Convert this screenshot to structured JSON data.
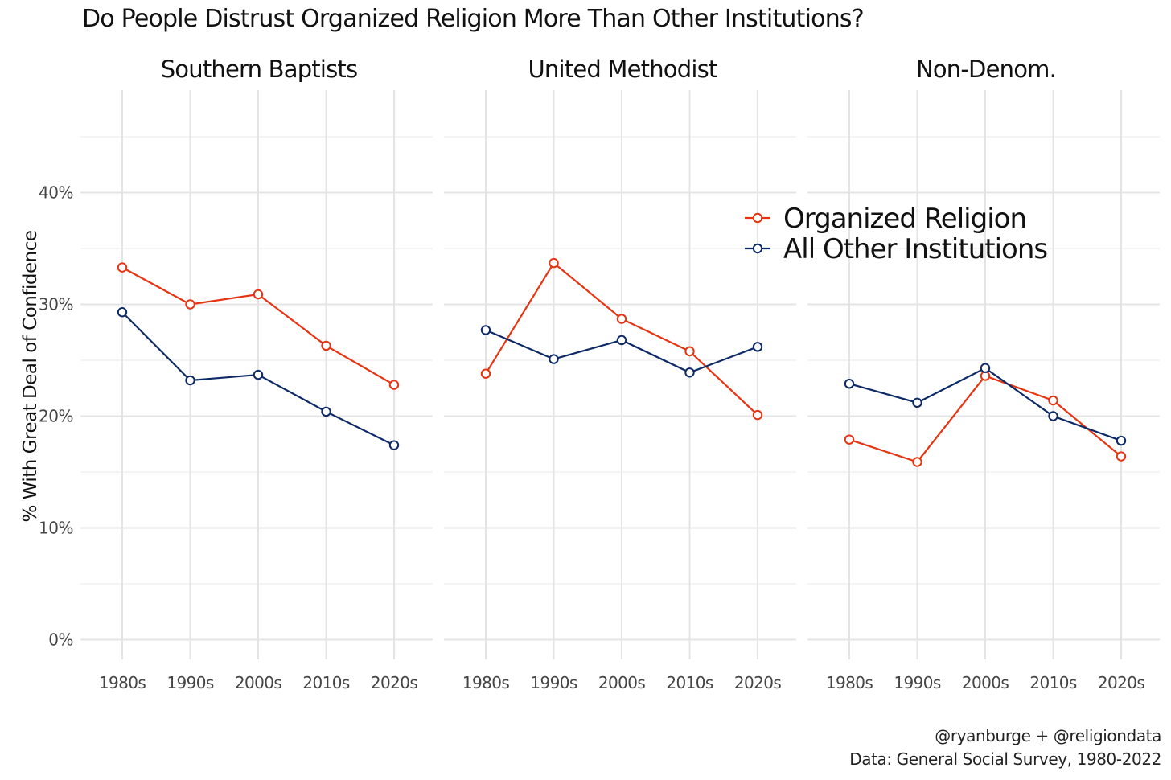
{
  "chart_data": {
    "type": "line",
    "title": "Do People Distrust Organized Religion More Than Other Institutions?",
    "ylabel": "% With Great Deal of Confidence",
    "xlabel": "",
    "ylim": [
      0,
      45
    ],
    "yticks": [
      "0%",
      "10%",
      "20%",
      "30%",
      "40%"
    ],
    "categories": [
      "1980s",
      "1990s",
      "2000s",
      "2010s",
      "2020s"
    ],
    "legend": {
      "position": "top-right"
    },
    "colors": {
      "Organized Religion": "#e63312",
      "All Other Institutions": "#0d2a66"
    },
    "facets": [
      {
        "label": "Southern Baptists",
        "series": [
          {
            "name": "Organized Religion",
            "values": [
              33.3,
              30.0,
              30.9,
              26.3,
              22.8
            ]
          },
          {
            "name": "All Other Institutions",
            "values": [
              29.3,
              23.2,
              23.7,
              20.4,
              17.4
            ]
          }
        ]
      },
      {
        "label": "United Methodist",
        "series": [
          {
            "name": "Organized Religion",
            "values": [
              23.8,
              33.7,
              28.7,
              25.8,
              20.1
            ]
          },
          {
            "name": "All Other Institutions",
            "values": [
              27.7,
              25.1,
              26.8,
              23.9,
              26.2
            ]
          }
        ]
      },
      {
        "label": "Non-Denom.",
        "series": [
          {
            "name": "Organized Religion",
            "values": [
              17.9,
              15.9,
              23.6,
              21.4,
              16.4
            ]
          },
          {
            "name": "All Other Institutions",
            "values": [
              22.9,
              21.2,
              24.3,
              20.0,
              17.8
            ]
          }
        ]
      }
    ]
  },
  "caption": {
    "line1": "@ryanburge + @religiondata",
    "line2": "Data: General Social Survey, 1980-2022"
  }
}
